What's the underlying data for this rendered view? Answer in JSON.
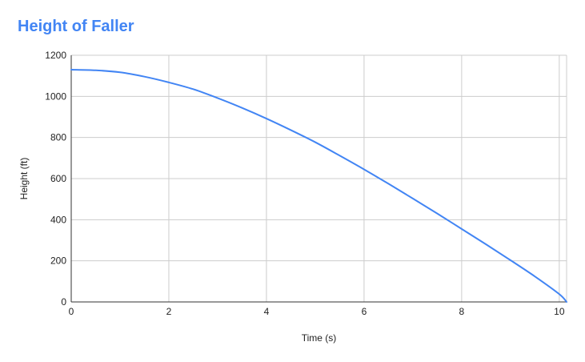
{
  "chart_data": {
    "type": "line",
    "title": "Height of Faller",
    "xlabel": "Time (s)",
    "ylabel": "Height (ft)",
    "xlim": [
      0,
      10.15
    ],
    "ylim": [
      0,
      1200
    ],
    "x_ticks": [
      0,
      2,
      4,
      6,
      8,
      10
    ],
    "y_ticks": [
      0,
      200,
      400,
      600,
      800,
      1000,
      1200
    ],
    "grid": true,
    "colors": {
      "line": "#4285f4",
      "title": "#4285f4",
      "grid": "#cccccc",
      "axis": "#333333"
    },
    "series": [
      {
        "x": [
          0,
          0.5,
          1,
          1.5,
          2,
          2.5,
          3,
          3.5,
          4,
          4.5,
          5,
          5.5,
          6,
          6.5,
          7,
          7.5,
          8,
          8.5,
          9,
          9.5,
          10,
          10.15
        ],
        "y": [
          1130,
          1127,
          1117,
          1096,
          1068,
          1035,
          992,
          944,
          892,
          836,
          777,
          712,
          645,
          575,
          503,
          430,
          355,
          280,
          203,
          124,
          38,
          0
        ]
      }
    ]
  }
}
